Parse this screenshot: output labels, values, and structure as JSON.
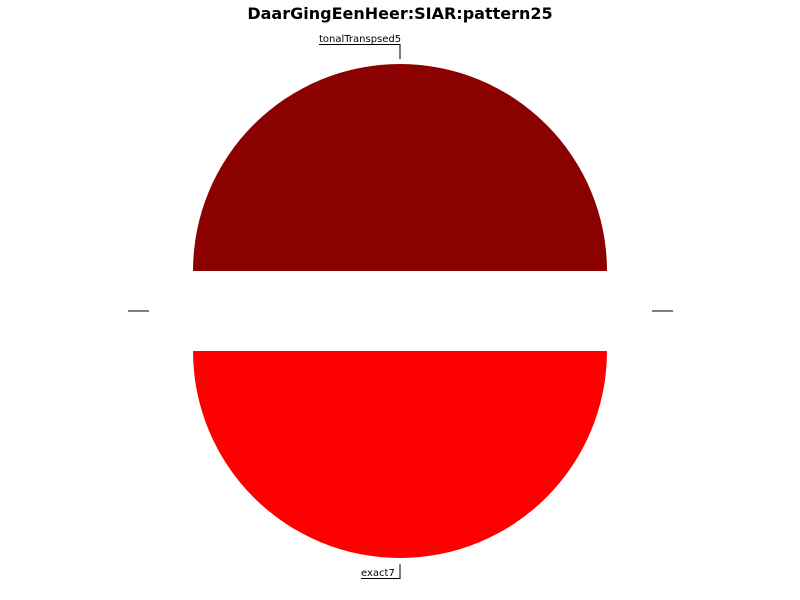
{
  "chart_data": {
    "type": "pie",
    "title": "DaarGingEenHeer:SIAR:pattern25",
    "slices": [
      {
        "label": "tonalTranspsed5",
        "value": 50,
        "color": "#8b0000"
      },
      {
        "label": "exact7",
        "value": 50,
        "color": "#ff0000"
      }
    ]
  }
}
